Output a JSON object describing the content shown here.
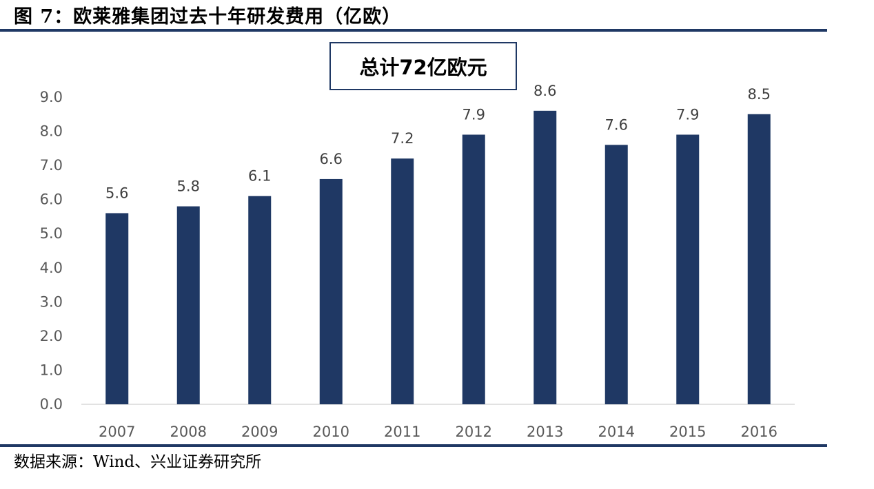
{
  "title": "图 7：欧莱雅集团过去十年研发费用（亿欧）",
  "source": "数据来源：Wind、兴业证券研究所",
  "annotation": "总计72亿欧元",
  "colors": {
    "bar": "#1f3864",
    "rule": "#1f3864"
  },
  "chart_data": {
    "type": "bar",
    "title": "",
    "xlabel": "",
    "ylabel": "",
    "categories": [
      "2007",
      "2008",
      "2009",
      "2010",
      "2011",
      "2012",
      "2013",
      "2014",
      "2015",
      "2016"
    ],
    "values": [
      5.6,
      5.8,
      6.1,
      6.6,
      7.2,
      7.9,
      8.6,
      7.6,
      7.9,
      8.5
    ],
    "data_labels": [
      "5.6",
      "5.8",
      "6.1",
      "6.6",
      "7.2",
      "7.9",
      "8.6",
      "7.6",
      "7.9",
      "8.5"
    ],
    "ylim": [
      0,
      9
    ],
    "yticks": [
      "0.0",
      "1.0",
      "2.0",
      "3.0",
      "4.0",
      "5.0",
      "6.0",
      "7.0",
      "8.0",
      "9.0"
    ],
    "grid": false,
    "legend": "none"
  }
}
